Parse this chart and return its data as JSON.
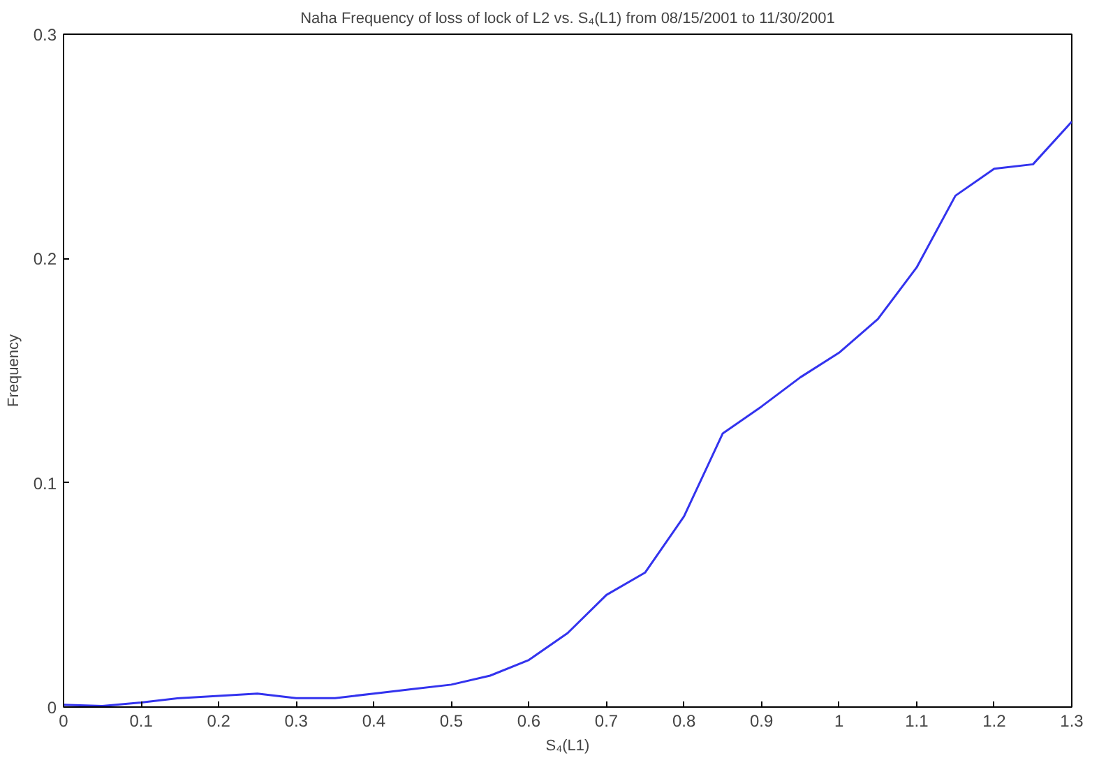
{
  "chart_data": {
    "type": "line",
    "title": "Naha Frequency of loss of lock of L2 vs. S₄(L1) from 08/15/2001 to 11/30/2001",
    "xlabel": "S₄(L1)",
    "ylabel": "Frequency",
    "x": [
      0,
      0.05,
      0.1,
      0.15,
      0.2,
      0.25,
      0.3,
      0.35,
      0.4,
      0.45,
      0.5,
      0.55,
      0.6,
      0.65,
      0.7,
      0.75,
      0.8,
      0.85,
      0.9,
      0.95,
      1.0,
      1.05,
      1.1,
      1.15,
      1.2,
      1.25,
      1.3
    ],
    "series": [
      {
        "color": "#3333ee",
        "values": [
          0.001,
          0.0005,
          0.002,
          0.004,
          0.005,
          0.006,
          0.004,
          0.004,
          0.006,
          0.008,
          0.01,
          0.014,
          0.021,
          0.033,
          0.05,
          0.06,
          0.085,
          0.122,
          0.134,
          0.147,
          0.158,
          0.173,
          0.196,
          0.228,
          0.24,
          0.242,
          0.261
        ]
      }
    ],
    "xlim": [
      0,
      1.3
    ],
    "xticks": [
      0,
      0.1,
      0.2,
      0.3,
      0.4,
      0.5,
      0.6,
      0.7,
      0.8,
      0.9,
      1,
      1.1,
      1.2,
      1.3
    ],
    "ylim": [
      0,
      0.3
    ],
    "yticks": [
      0,
      0.1,
      0.2,
      0.3
    ],
    "grid": false,
    "marker": "none",
    "line_style": "solid"
  }
}
